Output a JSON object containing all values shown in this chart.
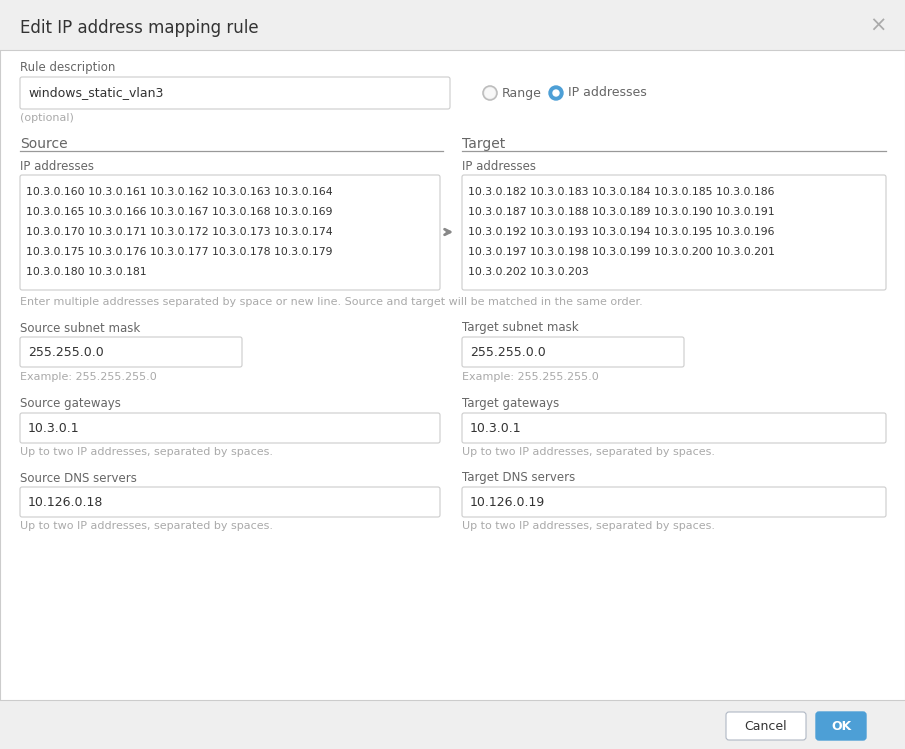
{
  "title": "Edit IP address mapping rule",
  "bg_color": "#f2f2f2",
  "dialog_bg": "#ffffff",
  "header_bg": "#efefef",
  "border_color": "#cccccc",
  "rule_description_label": "Rule description",
  "rule_description_value": "windows_static_vlan3",
  "optional_label": "(optional)",
  "radio_range_label": "Range",
  "radio_ip_label": "IP addresses",
  "source_label": "Source",
  "target_label": "Target",
  "ip_addresses_label": "IP addresses",
  "source_ip_text": "10.3.0.160 10.3.0.161 10.3.0.162 10.3.0.163 10.3.0.164\n10.3.0.165 10.3.0.166 10.3.0.167 10.3.0.168 10.3.0.169\n10.3.0.170 10.3.0.171 10.3.0.172 10.3.0.173 10.3.0.174\n10.3.0.175 10.3.0.176 10.3.0.177 10.3.0.178 10.3.0.179\n10.3.0.180 10.3.0.181",
  "target_ip_text": "10.3.0.182 10.3.0.183 10.3.0.184 10.3.0.185 10.3.0.186\n10.3.0.187 10.3.0.188 10.3.0.189 10.3.0.190 10.3.0.191\n10.3.0.192 10.3.0.193 10.3.0.194 10.3.0.195 10.3.0.196\n10.3.0.197 10.3.0.198 10.3.0.199 10.3.0.200 10.3.0.201\n10.3.0.202 10.3.0.203",
  "hint_text": "Enter multiple addresses separated by space or new line. Source and target will be matched in the same order.",
  "source_subnet_label": "Source subnet mask",
  "source_subnet_value": "255.255.0.0",
  "target_subnet_label": "Target subnet mask",
  "target_subnet_value": "255.255.0.0",
  "subnet_example": "Example: 255.255.255.0",
  "source_gateway_label": "Source gateways",
  "source_gateway_value": "10.3.0.1",
  "target_gateway_label": "Target gateways",
  "target_gateway_value": "10.3.0.1",
  "gateway_hint": "Up to two IP addresses, separated by spaces.",
  "source_dns_label": "Source DNS servers",
  "source_dns_value": "10.126.0.18",
  "target_dns_label": "Target DNS servers",
  "target_dns_value": "10.126.0.19",
  "dns_hint": "Up to two IP addresses, separated by spaces.",
  "cancel_label": "Cancel",
  "ok_label": "OK",
  "cancel_btn_color": "#ffffff",
  "ok_btn_color": "#4d9fd6",
  "text_color": "#333333",
  "label_color": "#666666",
  "hint_color": "#aaaaaa",
  "input_bg": "#ffffff",
  "input_border": "#cccccc",
  "close_color": "#aaaaaa",
  "divider_color": "#999999",
  "arrow_color": "#888888"
}
